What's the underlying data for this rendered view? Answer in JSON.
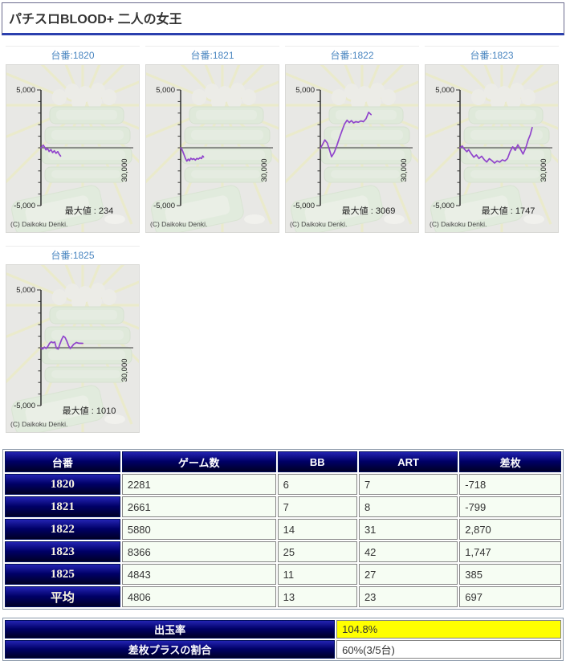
{
  "page_title": "パチスロBLOOD+ 二人の女王",
  "colors": {
    "accent_navy": "#000066",
    "link_blue": "#4a86c0",
    "line_purple": "#9044cc",
    "negative_red": "#ff0000",
    "highlight_yellow": "#ffff00",
    "panel_bg": "#e8e8e5"
  },
  "chart_data": [
    {
      "type": "line",
      "title": "台番:1820",
      "machine": "1820",
      "max_label": "最大値 : 234",
      "max_value": 234,
      "ylim": [
        -5000,
        5000
      ],
      "ytick_labels": [
        "5,000",
        "-5,000"
      ],
      "xlabel": "30,000",
      "copyright": "(C) Daikoku Denki.",
      "points": [
        [
          0,
          0
        ],
        [
          120,
          100
        ],
        [
          260,
          234
        ],
        [
          420,
          60
        ],
        [
          580,
          -180
        ],
        [
          760,
          -60
        ],
        [
          950,
          -320
        ],
        [
          1150,
          -150
        ],
        [
          1350,
          -420
        ],
        [
          1550,
          -260
        ],
        [
          1750,
          -480
        ],
        [
          1950,
          -330
        ],
        [
          2120,
          -560
        ],
        [
          2281,
          -718
        ]
      ]
    },
    {
      "type": "line",
      "title": "台番:1821",
      "machine": "1821",
      "max_label": "",
      "max_value": 0,
      "ylim": [
        -5000,
        5000
      ],
      "ytick_labels": [
        "5,000",
        "-5,000"
      ],
      "xlabel": "30,000",
      "copyright": "(C) Daikoku Denki.",
      "points": [
        [
          0,
          0
        ],
        [
          150,
          -140
        ],
        [
          350,
          -520
        ],
        [
          550,
          -920
        ],
        [
          720,
          -1150
        ],
        [
          880,
          -980
        ],
        [
          1020,
          -1120
        ],
        [
          1180,
          -900
        ],
        [
          1350,
          -1010
        ],
        [
          1520,
          -940
        ],
        [
          1700,
          -1060
        ],
        [
          1880,
          -920
        ],
        [
          2060,
          -980
        ],
        [
          2240,
          -860
        ],
        [
          2420,
          -930
        ],
        [
          2560,
          -700
        ],
        [
          2661,
          -799
        ]
      ]
    },
    {
      "type": "line",
      "title": "台番:1822",
      "machine": "1822",
      "max_label": "最大値 : 3069",
      "max_value": 3069,
      "ylim": [
        -5000,
        5000
      ],
      "ytick_labels": [
        "5,000",
        "-5,000"
      ],
      "xlabel": "30,000",
      "copyright": "(C) Daikoku Denki.",
      "points": [
        [
          0,
          -50
        ],
        [
          250,
          280
        ],
        [
          520,
          680
        ],
        [
          800,
          420
        ],
        [
          1050,
          -150
        ],
        [
          1300,
          -780
        ],
        [
          1600,
          -420
        ],
        [
          1900,
          150
        ],
        [
          2200,
          820
        ],
        [
          2500,
          1450
        ],
        [
          2800,
          2050
        ],
        [
          3100,
          2380
        ],
        [
          3350,
          2180
        ],
        [
          3600,
          2350
        ],
        [
          3850,
          2150
        ],
        [
          4100,
          2260
        ],
        [
          4400,
          2210
        ],
        [
          4700,
          2320
        ],
        [
          5000,
          2260
        ],
        [
          5300,
          2520
        ],
        [
          5600,
          3069
        ],
        [
          5880,
          2870
        ]
      ]
    },
    {
      "type": "line",
      "title": "台番:1823",
      "machine": "1823",
      "max_label": "最大値 : 1747",
      "max_value": 1747,
      "ylim": [
        -5000,
        5000
      ],
      "ytick_labels": [
        "5,000",
        "-5,000"
      ],
      "xlabel": "30,000",
      "copyright": "(C) Daikoku Denki.",
      "points": [
        [
          0,
          0
        ],
        [
          250,
          160
        ],
        [
          500,
          -120
        ],
        [
          800,
          -340
        ],
        [
          1000,
          -160
        ],
        [
          1300,
          -520
        ],
        [
          1600,
          -820
        ],
        [
          1900,
          -620
        ],
        [
          2200,
          -930
        ],
        [
          2500,
          -730
        ],
        [
          2800,
          -1020
        ],
        [
          3100,
          -1230
        ],
        [
          3400,
          -940
        ],
        [
          3700,
          -1120
        ],
        [
          4000,
          -1320
        ],
        [
          4300,
          -1140
        ],
        [
          4600,
          -1240
        ],
        [
          4900,
          -1040
        ],
        [
          5200,
          -1140
        ],
        [
          5500,
          -940
        ],
        [
          5800,
          -340
        ],
        [
          6100,
          80
        ],
        [
          6400,
          -220
        ],
        [
          6700,
          260
        ],
        [
          7000,
          -120
        ],
        [
          7300,
          -540
        ],
        [
          7600,
          -40
        ],
        [
          7900,
          680
        ],
        [
          8150,
          1150
        ],
        [
          8366,
          1747
        ]
      ]
    },
    {
      "type": "line",
      "title": "台番:1825",
      "machine": "1825",
      "max_label": "最大値 : 1010",
      "max_value": 1010,
      "ylim": [
        -5000,
        5000
      ],
      "ytick_labels": [
        "5,000",
        "-5,000"
      ],
      "xlabel": "30,000",
      "copyright": "(C) Daikoku Denki.",
      "points": [
        [
          0,
          0
        ],
        [
          200,
          -120
        ],
        [
          400,
          60
        ],
        [
          600,
          -60
        ],
        [
          800,
          120
        ],
        [
          1000,
          380
        ],
        [
          1200,
          520
        ],
        [
          1400,
          440
        ],
        [
          1600,
          500
        ],
        [
          1800,
          -40
        ],
        [
          2000,
          -110
        ],
        [
          2200,
          320
        ],
        [
          2400,
          720
        ],
        [
          2600,
          1010
        ],
        [
          2800,
          880
        ],
        [
          3000,
          580
        ],
        [
          3200,
          180
        ],
        [
          3400,
          -60
        ],
        [
          3600,
          120
        ],
        [
          3800,
          300
        ],
        [
          4100,
          460
        ],
        [
          4400,
          390
        ],
        [
          4843,
          385
        ]
      ]
    }
  ],
  "table": {
    "headers": [
      "台番",
      "ゲーム数",
      "BB",
      "ART",
      "差枚"
    ],
    "rows": [
      {
        "label": "1820",
        "cells": [
          "2281",
          "6",
          "7",
          "-718"
        ]
      },
      {
        "label": "1821",
        "cells": [
          "2661",
          "7",
          "8",
          "-799"
        ]
      },
      {
        "label": "1822",
        "cells": [
          "5880",
          "14",
          "31",
          "2,870"
        ]
      },
      {
        "label": "1823",
        "cells": [
          "8366",
          "25",
          "42",
          "1,747"
        ]
      },
      {
        "label": "1825",
        "cells": [
          "4843",
          "11",
          "27",
          "385"
        ]
      },
      {
        "label": "平均",
        "cells": [
          "4806",
          "13",
          "23",
          "697"
        ]
      }
    ]
  },
  "summary": {
    "rows": [
      {
        "label": "出玉率",
        "value": "104.8%",
        "highlight": true
      },
      {
        "label": "差枚プラスの割合",
        "value": "60%(3/5台)",
        "highlight": false
      }
    ]
  }
}
